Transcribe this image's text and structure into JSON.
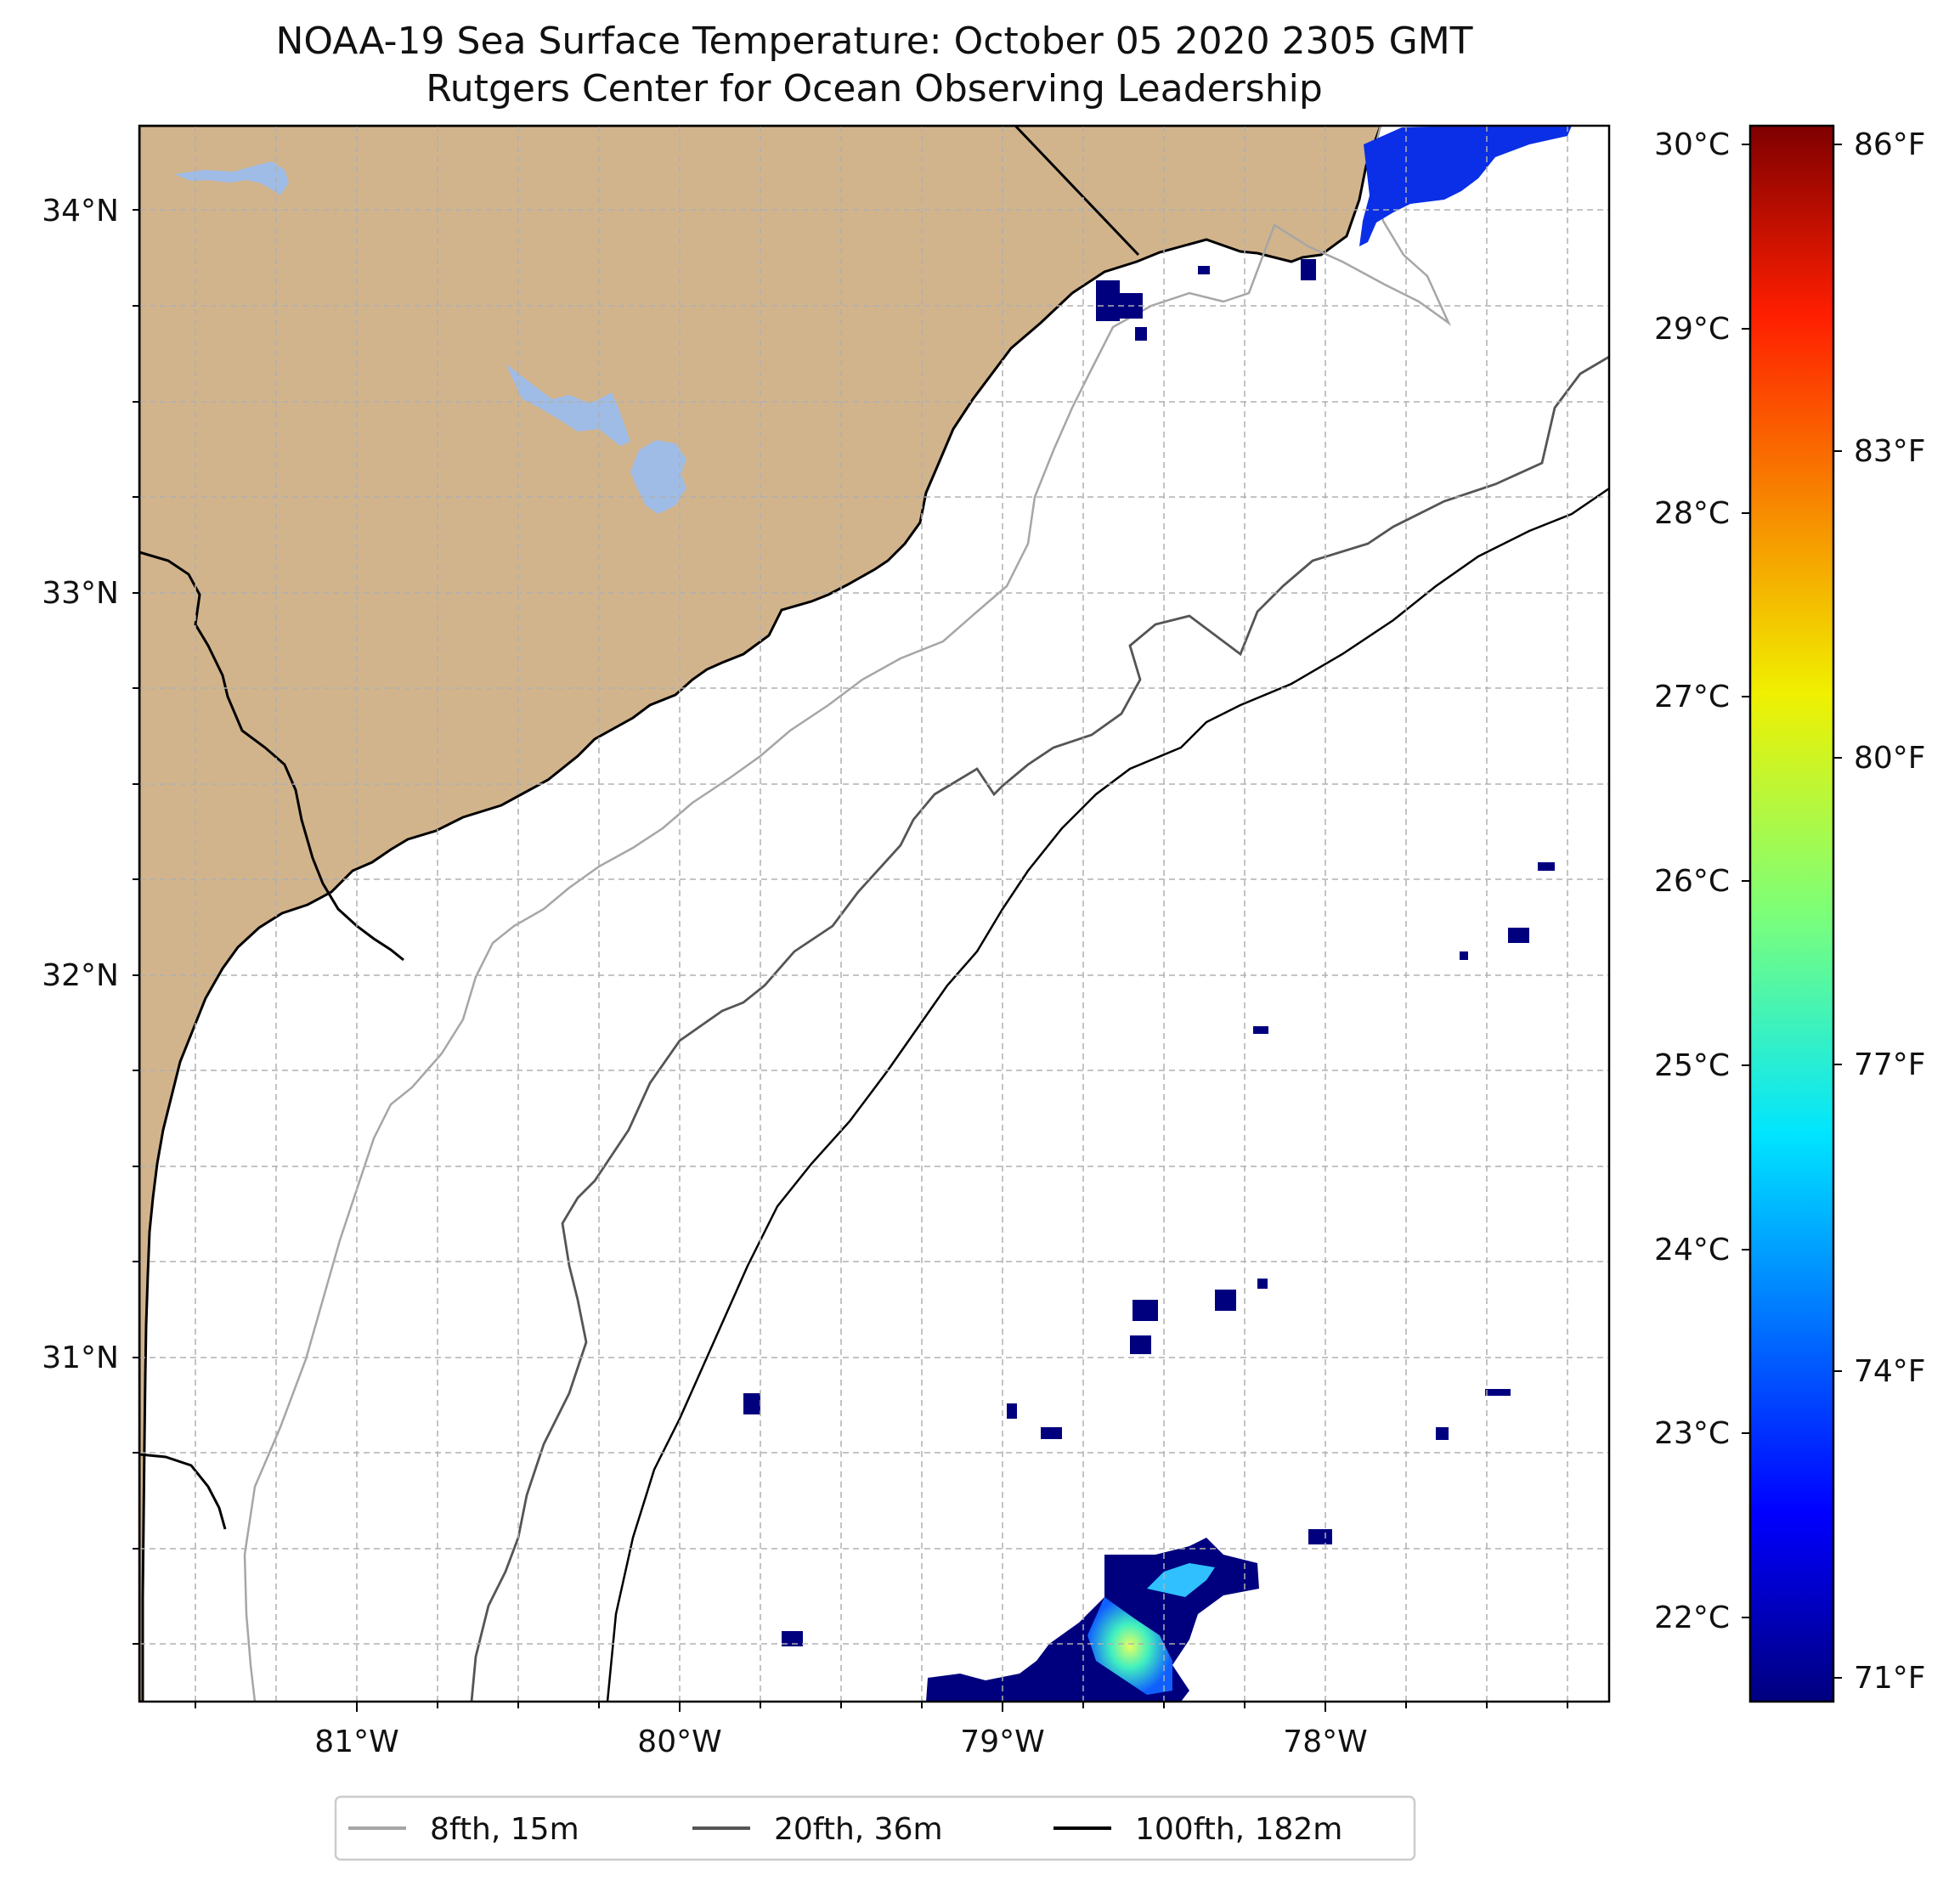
{
  "title": {
    "line1": "NOAA-19 Sea Surface Temperature: October 05 2020 2305 GMT",
    "line2": "Rutgers Center for Ocean Observing Leadership"
  },
  "map": {
    "lon_range": [
      -81.68,
      -77.12
    ],
    "lat_range": [
      30.07,
      34.22
    ],
    "land_color": "#D2B48C",
    "lake_color": "#9FBCE6",
    "ocean_color": "#ffffff",
    "grid": true,
    "lon_ticks": [
      "81°W",
      "80°W",
      "79°W",
      "78°W"
    ],
    "lat_ticks": [
      "34°N",
      "33°N",
      "32°N",
      "31°N"
    ]
  },
  "colorbar": {
    "colormap": "jet",
    "celsius_range": [
      21.55,
      30.1
    ],
    "celsius_ticks": [
      "30°C",
      "29°C",
      "28°C",
      "27°C",
      "26°C",
      "25°C",
      "24°C",
      "23°C",
      "22°C"
    ],
    "fahrenheit_ticks": [
      "86°F",
      "83°F",
      "80°F",
      "77°F",
      "74°F",
      "71°F"
    ]
  },
  "legend": {
    "items": [
      {
        "label": "8fth, 15m",
        "color": "#a6a6a6"
      },
      {
        "label": "20fth, 36m",
        "color": "#555555"
      },
      {
        "label": "100fth, 182m",
        "color": "#000000"
      }
    ]
  }
}
